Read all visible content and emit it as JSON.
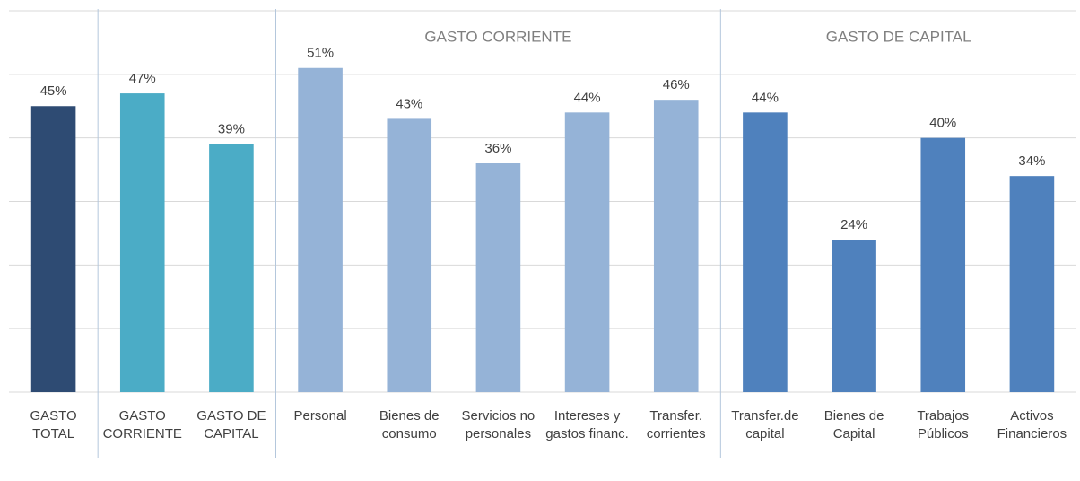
{
  "chart_data": {
    "type": "bar",
    "group_labels": [
      "GASTO CORRIENTE",
      "GASTO DE CAPITAL"
    ],
    "categories": [
      "GASTO TOTAL",
      "GASTO CORRIENTE",
      "GASTO DE CAPITAL",
      "Personal",
      "Bienes de consumo",
      "Servicios no personales",
      "Intereses y gastos financ.",
      "Transfer. corrientes",
      "Transfer.de capital",
      "Bienes de Capital",
      "Trabajos Públicos",
      "Activos Financieros"
    ],
    "values": [
      45,
      47,
      39,
      51,
      43,
      36,
      44,
      46,
      44,
      24,
      40,
      34
    ],
    "value_labels": [
      "45%",
      "47%",
      "39%",
      "51%",
      "43%",
      "36%",
      "44%",
      "46%",
      "44%",
      "24%",
      "40%",
      "34%"
    ],
    "colors": [
      "#2e4b73",
      "#4bacc6",
      "#4bacc6",
      "#95b3d7",
      "#95b3d7",
      "#95b3d7",
      "#95b3d7",
      "#95b3d7",
      "#4f81bd",
      "#4f81bd",
      "#4f81bd",
      "#4f81bd"
    ],
    "ylim": [
      0,
      60
    ],
    "yticks": [
      0,
      10,
      20,
      30,
      40,
      50,
      60
    ],
    "grid": true
  }
}
